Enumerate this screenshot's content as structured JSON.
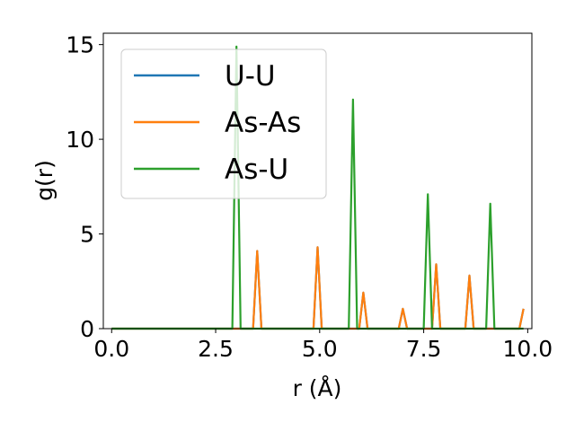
{
  "chart_data": {
    "type": "line",
    "title": "",
    "xlabel": "r (Å)",
    "ylabel": "g(r)",
    "xlim": [
      -0.2,
      10.1
    ],
    "ylim": [
      0,
      15.6
    ],
    "xticks": [
      0.0,
      2.5,
      5.0,
      7.5,
      10.0
    ],
    "xtick_labels": [
      "0.0",
      "2.5",
      "5.0",
      "7.5",
      "10.0"
    ],
    "yticks": [
      0,
      5,
      10,
      15
    ],
    "ytick_labels": [
      "0",
      "5",
      "10",
      "15"
    ],
    "grid": false,
    "legend_position": "top-left",
    "series": [
      {
        "name": "U-U",
        "color": "#1f77b4",
        "x": [
          0.0,
          3.4,
          3.5,
          3.6,
          4.85,
          4.95,
          5.05,
          5.95,
          6.05,
          6.15,
          6.9,
          7.0,
          7.1,
          7.7,
          7.8,
          7.9,
          8.5,
          8.6,
          8.7,
          9.8,
          9.9
        ],
        "y": [
          0,
          0,
          4.1,
          0,
          0,
          4.3,
          0,
          0,
          1.9,
          0,
          0,
          1.05,
          0,
          0,
          3.4,
          0,
          0,
          2.8,
          0,
          0,
          1.05
        ]
      },
      {
        "name": "As-As",
        "color": "#ff7f0e",
        "x": [
          0.0,
          3.4,
          3.5,
          3.6,
          4.85,
          4.95,
          5.05,
          5.95,
          6.05,
          6.15,
          6.9,
          7.0,
          7.1,
          7.7,
          7.8,
          7.9,
          8.5,
          8.6,
          8.7,
          9.8,
          9.9
        ],
        "y": [
          0,
          0,
          4.1,
          0,
          0,
          4.3,
          0,
          0,
          1.9,
          0,
          0,
          1.05,
          0,
          0,
          3.4,
          0,
          0,
          2.8,
          0,
          0,
          1.05
        ]
      },
      {
        "name": "As-U",
        "color": "#2ca02c",
        "x": [
          0.0,
          2.9,
          3.0,
          3.1,
          5.7,
          5.8,
          5.9,
          7.5,
          7.6,
          7.7,
          9.0,
          9.1,
          9.2,
          9.9
        ],
        "y": [
          0,
          0,
          14.9,
          0,
          0,
          12.1,
          0,
          0,
          7.1,
          0,
          0,
          6.6,
          0,
          0
        ]
      }
    ]
  }
}
